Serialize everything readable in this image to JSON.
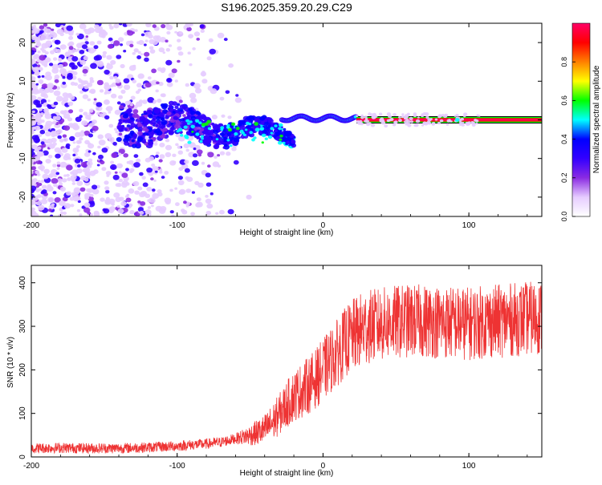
{
  "chart_data": [
    {
      "type": "heatmap",
      "title": "S196.2025.359.20.29.C29",
      "xlabel": "Height of straight line (km)",
      "ylabel": "Frequency (Hz)",
      "xlim": [
        -200,
        150
      ],
      "ylim": [
        -25,
        25
      ],
      "x_ticks": [
        -200,
        -100,
        0,
        100
      ],
      "x_tick_labels": [
        "-200",
        "-100",
        "0",
        "100"
      ],
      "y_ticks": [
        -20,
        -10,
        0,
        10,
        20
      ],
      "y_tick_labels": [
        "-20",
        "-10",
        "0",
        "10",
        "20"
      ],
      "carrier_band": {
        "x_start": 23,
        "x_end": 150,
        "frequency_hz": 0,
        "amplitude": 0.95
      },
      "colorbar": {
        "label": "Normalized spectral amplitude",
        "range": [
          0,
          1
        ],
        "ticks": [
          0,
          0.2,
          0.4,
          0.6,
          0.8
        ],
        "tick_labels": [
          "0.0",
          "0.2",
          "0.4",
          "0.6",
          "0.8"
        ],
        "colors": [
          "#ffffff",
          "#e6ccff",
          "#8a2be2",
          "#3300ff",
          "#0000ff",
          "#00ffff",
          "#00ff00",
          "#ffff00",
          "#ff8000",
          "#ff0000",
          "#ff0066"
        ]
      }
    },
    {
      "type": "line",
      "xlabel": "Height of straight line (km)",
      "ylabel": "SNR (10 * v/v)",
      "xlim": [
        -200,
        150
      ],
      "ylim": [
        0,
        440
      ],
      "x_ticks": [
        -200,
        -100,
        0,
        100
      ],
      "x_tick_labels": [
        "-200",
        "-100",
        "0",
        "100"
      ],
      "y_ticks": [
        0,
        100,
        200,
        300,
        400
      ],
      "y_tick_labels": [
        "0",
        "100",
        "200",
        "300",
        "400"
      ],
      "color": "#ee3333",
      "series": [
        {
          "name": "SNR",
          "x": [
            -200,
            -180,
            -160,
            -140,
            -120,
            -100,
            -90,
            -80,
            -70,
            -60,
            -50,
            -40,
            -35,
            -30,
            -25,
            -20,
            -15,
            -10,
            -5,
            0,
            5,
            10,
            15,
            20,
            25,
            30,
            40,
            50,
            60,
            70,
            80,
            90,
            100,
            110,
            120,
            130,
            140,
            150
          ],
          "values": [
            20,
            21,
            20,
            20,
            22,
            25,
            28,
            30,
            34,
            42,
            50,
            62,
            78,
            98,
            120,
            140,
            152,
            165,
            180,
            200,
            220,
            240,
            262,
            278,
            288,
            298,
            305,
            310,
            312,
            312,
            310,
            308,
            306,
            310,
            312,
            315,
            318,
            320
          ]
        }
      ]
    }
  ]
}
